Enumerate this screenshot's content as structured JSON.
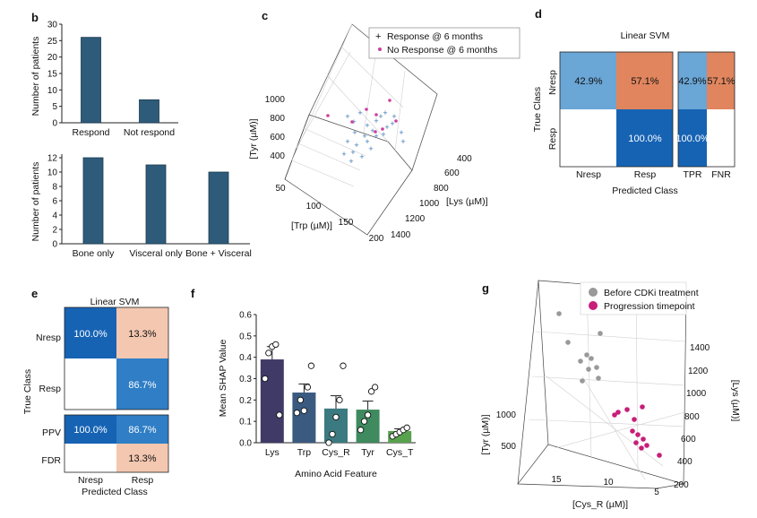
{
  "panels": {
    "b": {
      "letter": "b",
      "top": {
        "ylabel": "Number of patients",
        "categories": [
          "Respond",
          "Not respond"
        ],
        "values": [
          26,
          7
        ],
        "ylim": [
          0,
          30
        ],
        "yticks": [
          0,
          5,
          10,
          15,
          20,
          25,
          30
        ],
        "color": "#2e5b7a"
      },
      "bottom": {
        "ylabel": "Number of patients",
        "categories": [
          "Bone only",
          "Visceral only",
          "Bone + Visceral"
        ],
        "values": [
          12,
          11,
          10
        ],
        "ylim": [
          0,
          12.5
        ],
        "yticks": [
          0,
          2,
          4,
          6,
          8,
          10,
          12
        ],
        "color": "#2e5b7a"
      }
    },
    "c": {
      "letter": "c",
      "legend": [
        "Response @ 6 months",
        "No Response @ 6 months"
      ],
      "colors": [
        "#3a78b5",
        "#cc3f9c"
      ],
      "xlabel": "[Trp (µM)]",
      "ylabel": "[Lys (µM)]",
      "zlabel": "[Tyr (µM)]",
      "xticks": [
        "50",
        "100",
        "150",
        "200"
      ],
      "yticks": [
        "400",
        "600",
        "800",
        "1000",
        "1200",
        "1400"
      ],
      "zticks": [
        "400",
        "600",
        "800",
        "1000"
      ]
    },
    "d": {
      "letter": "d",
      "title": "Linear SVM",
      "true_class": "True Class",
      "predicted_class": "Predicted Class",
      "rows": [
        "Nresp",
        "Resp"
      ],
      "cols": [
        "Nresp",
        "Resp"
      ],
      "extra_cols": [
        "TPR",
        "FNR"
      ],
      "cells": {
        "nn": "42.9%",
        "nr": "57.1%",
        "rr": "100.0%",
        "tpr_n": "42.9%",
        "fnr_n": "57.1%",
        "tpr_r": "100.0%"
      },
      "colors": {
        "light_blue": "#6aa6d6",
        "dark_blue": "#1663b4",
        "orange": "#e0855e"
      }
    },
    "e": {
      "letter": "e",
      "title": "Linear SVM",
      "true_class": "True Class",
      "predicted_class": "Predicted Class",
      "rows": [
        "Nresp",
        "Resp"
      ],
      "extra_rows": [
        "PPV",
        "FDR"
      ],
      "cols": [
        "Nresp",
        "Resp"
      ],
      "cells": {
        "nn": "100.0%",
        "nr": "13.3%",
        "rr": "86.7%",
        "ppv_n": "100.0%",
        "ppv_r": "86.7%",
        "fdr_r": "13.3%"
      },
      "colors": {
        "dark_blue": "#1663b4",
        "mid_blue": "#2f7ec6",
        "peach": "#f3c7b0"
      }
    },
    "f": {
      "letter": "f",
      "xlabel": "Amino Acid Feature",
      "ylabel": "Mean SHAP Value",
      "categories": [
        "Lys",
        "Trp",
        "Cys_R",
        "Tyr",
        "Cys_T"
      ],
      "values": [
        0.39,
        0.235,
        0.16,
        0.155,
        0.055
      ],
      "errors": [
        0.06,
        0.04,
        0.06,
        0.04,
        0.01
      ],
      "points": [
        [
          0.3,
          0.42,
          0.45,
          0.46,
          0.13
        ],
        [
          0.14,
          0.2,
          0.15,
          0.26,
          0.36
        ],
        [
          0.0,
          0.04,
          0.12,
          0.2,
          0.36
        ],
        [
          0.06,
          0.1,
          0.13,
          0.24,
          0.26
        ],
        [
          0.03,
          0.04,
          0.05,
          0.06,
          0.07
        ]
      ],
      "colors": [
        "#3f3a66",
        "#3b5a80",
        "#3b7a80",
        "#3f8a5e",
        "#58a24e"
      ],
      "ylim": [
        0,
        0.6
      ],
      "yticks": [
        "0.0",
        "0.1",
        "0.2",
        "0.3",
        "0.4",
        "0.5",
        "0.6"
      ]
    },
    "g": {
      "letter": "g",
      "legend": [
        "Before CDKi treatment",
        "Progression timepoint"
      ],
      "colors": [
        "#999999",
        "#c81d7a"
      ],
      "xlabel": "[Cys_R (µM)]",
      "ylabel": "[Lys (µM)]",
      "zlabel": "[Tyr (µM)]",
      "xticks": [
        "15",
        "10",
        "5"
      ],
      "yticks": [
        "200",
        "400",
        "600",
        "800",
        "1000",
        "1200",
        "1400"
      ],
      "zticks": [
        "500",
        "1000"
      ]
    }
  }
}
